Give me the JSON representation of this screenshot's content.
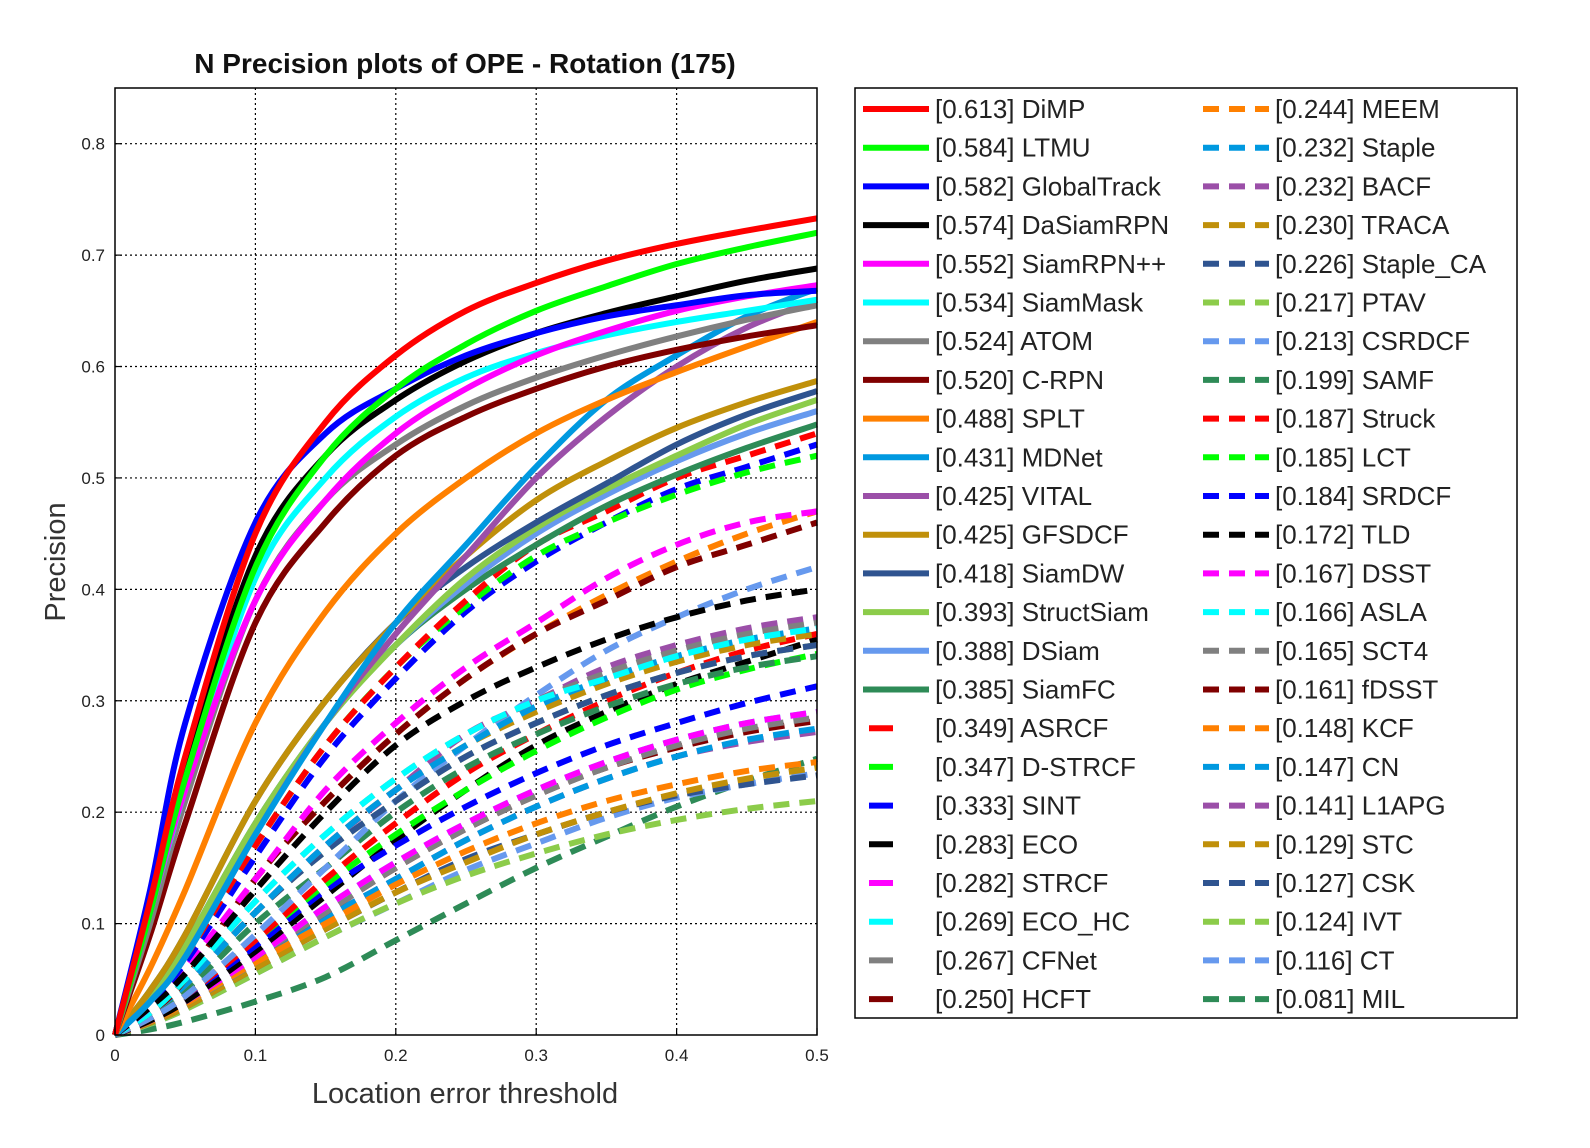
{
  "chart_data": {
    "type": "line",
    "title": "N Precision plots of OPE - Rotation (175)",
    "xlabel": "Location error threshold",
    "ylabel": "Precision",
    "xlim": [
      0,
      0.5
    ],
    "ylim": [
      0,
      0.85
    ],
    "xticks": [
      0,
      0.1,
      0.2,
      0.3,
      0.4,
      0.5
    ],
    "xtick_labels": [
      "0",
      "0.1",
      "0.2",
      "0.3",
      "0.4",
      "0.5"
    ],
    "yticks": [
      0,
      0.1,
      0.2,
      0.3,
      0.4,
      0.5,
      0.6,
      0.7,
      0.8
    ],
    "ytick_labels": [
      "0",
      "0.1",
      "0.2",
      "0.3",
      "0.4",
      "0.5",
      "0.6",
      "0.7",
      "0.8"
    ],
    "grid": true,
    "legend_position": "outside-right",
    "x": [
      0,
      0.025,
      0.05,
      0.1,
      0.15,
      0.2,
      0.25,
      0.3,
      0.35,
      0.4,
      0.45,
      0.5
    ],
    "series": [
      {
        "name": "[0.613] DiMP",
        "color": "#ff0000",
        "dash": "solid",
        "values": [
          0,
          0.12,
          0.25,
          0.45,
          0.55,
          0.61,
          0.65,
          0.675,
          0.695,
          0.71,
          0.722,
          0.733
        ]
      },
      {
        "name": "[0.584] LTMU",
        "color": "#00ff00",
        "dash": "solid",
        "values": [
          0,
          0.11,
          0.23,
          0.42,
          0.52,
          0.58,
          0.62,
          0.65,
          0.672,
          0.692,
          0.707,
          0.72
        ]
      },
      {
        "name": "[0.582] GlobalTrack",
        "color": "#0000ff",
        "dash": "solid",
        "values": [
          0,
          0.13,
          0.28,
          0.46,
          0.54,
          0.58,
          0.61,
          0.63,
          0.645,
          0.655,
          0.664,
          0.668
        ]
      },
      {
        "name": "[0.574] DaSiamRPN",
        "color": "#000000",
        "dash": "solid",
        "values": [
          0,
          0.12,
          0.24,
          0.43,
          0.52,
          0.57,
          0.605,
          0.63,
          0.648,
          0.663,
          0.677,
          0.688
        ]
      },
      {
        "name": "[0.552] SiamRPN++",
        "color": "#ff00ff",
        "dash": "solid",
        "values": [
          0,
          0.11,
          0.22,
          0.39,
          0.48,
          0.54,
          0.58,
          0.61,
          0.632,
          0.65,
          0.663,
          0.673
        ]
      },
      {
        "name": "[0.534] SiamMask",
        "color": "#00ffff",
        "dash": "solid",
        "values": [
          0,
          0.11,
          0.22,
          0.41,
          0.5,
          0.555,
          0.59,
          0.612,
          0.628,
          0.64,
          0.65,
          0.66
        ]
      },
      {
        "name": "[0.524] ATOM",
        "color": "#808080",
        "dash": "solid",
        "values": [
          0,
          0.1,
          0.21,
          0.39,
          0.48,
          0.53,
          0.565,
          0.59,
          0.61,
          0.627,
          0.642,
          0.655
        ]
      },
      {
        "name": "[0.520] C-RPN",
        "color": "#800000",
        "dash": "solid",
        "values": [
          0,
          0.09,
          0.19,
          0.37,
          0.46,
          0.52,
          0.555,
          0.58,
          0.6,
          0.615,
          0.627,
          0.637
        ]
      },
      {
        "name": "[0.488] SPLT",
        "color": "#ff8000",
        "dash": "solid",
        "values": [
          0,
          0.06,
          0.13,
          0.28,
          0.38,
          0.45,
          0.5,
          0.54,
          0.57,
          0.595,
          0.618,
          0.64
        ]
      },
      {
        "name": "[0.431] MDNet",
        "color": "#0099e0",
        "dash": "solid",
        "values": [
          0,
          0.03,
          0.07,
          0.18,
          0.28,
          0.37,
          0.44,
          0.51,
          0.57,
          0.61,
          0.645,
          0.67
        ]
      },
      {
        "name": "[0.425] VITAL",
        "color": "#9b4fa8",
        "dash": "solid",
        "values": [
          0,
          0.03,
          0.07,
          0.18,
          0.28,
          0.36,
          0.43,
          0.5,
          0.555,
          0.6,
          0.635,
          0.66
        ]
      },
      {
        "name": "[0.425] GFSDCF",
        "color": "#c0900a",
        "dash": "solid",
        "values": [
          0,
          0.04,
          0.09,
          0.21,
          0.3,
          0.37,
          0.43,
          0.48,
          0.515,
          0.545,
          0.568,
          0.587
        ]
      },
      {
        "name": "[0.418] SiamDW",
        "color": "#2f5490",
        "dash": "solid",
        "values": [
          0,
          0.04,
          0.09,
          0.21,
          0.3,
          0.37,
          0.42,
          0.46,
          0.495,
          0.53,
          0.557,
          0.578
        ]
      },
      {
        "name": "[0.393] StructSiam",
        "color": "#8ccc4a",
        "dash": "solid",
        "values": [
          0,
          0.035,
          0.08,
          0.19,
          0.28,
          0.35,
          0.41,
          0.455,
          0.49,
          0.52,
          0.548,
          0.57
        ]
      },
      {
        "name": "[0.388] DSiam",
        "color": "#6699ee",
        "dash": "solid",
        "values": [
          0,
          0.035,
          0.08,
          0.19,
          0.28,
          0.35,
          0.405,
          0.45,
          0.485,
          0.515,
          0.54,
          0.56
        ]
      },
      {
        "name": "[0.385] SiamFC",
        "color": "#2e8b57",
        "dash": "solid",
        "values": [
          0,
          0.035,
          0.08,
          0.19,
          0.28,
          0.35,
          0.4,
          0.44,
          0.475,
          0.503,
          0.527,
          0.548
        ]
      },
      {
        "name": "[0.349] ASRCF",
        "color": "#ff0000",
        "dash": "dash",
        "values": [
          0,
          0.03,
          0.07,
          0.17,
          0.26,
          0.33,
          0.39,
          0.44,
          0.47,
          0.5,
          0.52,
          0.54
        ]
      },
      {
        "name": "[0.347] D-STRCF",
        "color": "#00ff00",
        "dash": "dash",
        "values": [
          0,
          0.03,
          0.07,
          0.17,
          0.26,
          0.33,
          0.385,
          0.43,
          0.46,
          0.485,
          0.505,
          0.52
        ]
      },
      {
        "name": "[0.333] SINT",
        "color": "#0000ff",
        "dash": "dash",
        "values": [
          0,
          0.03,
          0.065,
          0.16,
          0.25,
          0.32,
          0.38,
          0.425,
          0.46,
          0.49,
          0.51,
          0.53
        ]
      },
      {
        "name": "[0.283] ECO",
        "color": "#000000",
        "dash": "dash",
        "values": [
          0,
          0.025,
          0.055,
          0.13,
          0.2,
          0.26,
          0.3,
          0.33,
          0.355,
          0.375,
          0.39,
          0.4
        ]
      },
      {
        "name": "[0.282] STRCF",
        "color": "#ff00ff",
        "dash": "dash",
        "values": [
          0,
          0.025,
          0.06,
          0.14,
          0.22,
          0.28,
          0.33,
          0.37,
          0.41,
          0.44,
          0.46,
          0.47
        ]
      },
      {
        "name": "[0.269] ECO_HC",
        "color": "#00ffff",
        "dash": "dash",
        "values": [
          0,
          0.02,
          0.05,
          0.12,
          0.18,
          0.23,
          0.27,
          0.3,
          0.32,
          0.34,
          0.355,
          0.365
        ]
      },
      {
        "name": "[0.267] CFNet",
        "color": "#808080",
        "dash": "dash",
        "values": [
          0,
          0.02,
          0.05,
          0.12,
          0.18,
          0.23,
          0.27,
          0.3,
          0.325,
          0.345,
          0.36,
          0.37
        ]
      },
      {
        "name": "[0.250] HCFT",
        "color": "#800000",
        "dash": "dash",
        "values": [
          0,
          0.02,
          0.05,
          0.14,
          0.21,
          0.27,
          0.32,
          0.36,
          0.39,
          0.42,
          0.44,
          0.46
        ]
      },
      {
        "name": "[0.244] MEEM",
        "color": "#ff8000",
        "dash": "dash",
        "values": [
          0,
          0.02,
          0.05,
          0.14,
          0.21,
          0.27,
          0.32,
          0.36,
          0.395,
          0.425,
          0.45,
          0.47
        ]
      },
      {
        "name": "[0.232] Staple",
        "color": "#0099e0",
        "dash": "dash",
        "values": [
          0,
          0.02,
          0.045,
          0.11,
          0.17,
          0.22,
          0.26,
          0.295,
          0.32,
          0.34,
          0.355,
          0.365
        ]
      },
      {
        "name": "[0.232] BACF",
        "color": "#9b4fa8",
        "dash": "dash",
        "values": [
          0,
          0.02,
          0.045,
          0.11,
          0.17,
          0.22,
          0.27,
          0.3,
          0.33,
          0.35,
          0.365,
          0.375
        ]
      },
      {
        "name": "[0.230] TRACA",
        "color": "#c0900a",
        "dash": "dash",
        "values": [
          0,
          0.02,
          0.045,
          0.11,
          0.17,
          0.22,
          0.26,
          0.29,
          0.315,
          0.335,
          0.35,
          0.36
        ]
      },
      {
        "name": "[0.226] Staple_CA",
        "color": "#2f5490",
        "dash": "dash",
        "values": [
          0,
          0.02,
          0.045,
          0.11,
          0.165,
          0.21,
          0.25,
          0.28,
          0.305,
          0.325,
          0.34,
          0.35
        ]
      },
      {
        "name": "[0.217] PTAV",
        "color": "#8ccc4a",
        "dash": "dash",
        "values": [
          0,
          0.02,
          0.045,
          0.11,
          0.165,
          0.21,
          0.25,
          0.28,
          0.305,
          0.325,
          0.34,
          0.35
        ]
      },
      {
        "name": "[0.213] CSRDCF",
        "color": "#6699ee",
        "dash": "dash",
        "values": [
          0,
          0.015,
          0.035,
          0.09,
          0.15,
          0.21,
          0.26,
          0.305,
          0.345,
          0.375,
          0.4,
          0.42
        ]
      },
      {
        "name": "[0.199] SAMF",
        "color": "#2e8b57",
        "dash": "dash",
        "values": [
          0,
          0.02,
          0.04,
          0.1,
          0.15,
          0.2,
          0.24,
          0.27,
          0.295,
          0.315,
          0.33,
          0.34
        ]
      },
      {
        "name": "[0.187] Struck",
        "color": "#ff0000",
        "dash": "dash",
        "values": [
          0,
          0.015,
          0.035,
          0.085,
          0.14,
          0.19,
          0.235,
          0.27,
          0.3,
          0.325,
          0.345,
          0.36
        ]
      },
      {
        "name": "[0.185] LCT",
        "color": "#00ff00",
        "dash": "dash",
        "values": [
          0,
          0.015,
          0.035,
          0.085,
          0.135,
          0.18,
          0.22,
          0.255,
          0.285,
          0.31,
          0.328,
          0.342
        ]
      },
      {
        "name": "[0.184] SRDCF",
        "color": "#0000ff",
        "dash": "dash",
        "values": [
          0,
          0.015,
          0.035,
          0.08,
          0.13,
          0.17,
          0.205,
          0.235,
          0.26,
          0.28,
          0.298,
          0.313
        ]
      },
      {
        "name": "[0.172] TLD",
        "color": "#000000",
        "dash": "dash",
        "values": [
          0,
          0.013,
          0.03,
          0.075,
          0.125,
          0.175,
          0.22,
          0.26,
          0.29,
          0.315,
          0.335,
          0.355
        ]
      },
      {
        "name": "[0.167] DSST",
        "color": "#ff00ff",
        "dash": "dash",
        "values": [
          0,
          0.013,
          0.03,
          0.07,
          0.115,
          0.155,
          0.19,
          0.22,
          0.245,
          0.265,
          0.28,
          0.29
        ]
      },
      {
        "name": "[0.166] ASLA",
        "color": "#00ffff",
        "dash": "dash",
        "values": [
          0,
          0.013,
          0.03,
          0.07,
          0.115,
          0.155,
          0.19,
          0.22,
          0.245,
          0.265,
          0.28,
          0.29
        ]
      },
      {
        "name": "[0.165] SCT4",
        "color": "#808080",
        "dash": "dash",
        "values": [
          0,
          0.013,
          0.03,
          0.07,
          0.11,
          0.15,
          0.185,
          0.215,
          0.24,
          0.26,
          0.275,
          0.285
        ]
      },
      {
        "name": "[0.161] fDSST",
        "color": "#800000",
        "dash": "dash",
        "values": [
          0,
          0.013,
          0.03,
          0.07,
          0.11,
          0.15,
          0.185,
          0.215,
          0.24,
          0.258,
          0.272,
          0.282
        ]
      },
      {
        "name": "[0.148] KCF",
        "color": "#ff8000",
        "dash": "dash",
        "values": [
          0,
          0.012,
          0.028,
          0.065,
          0.1,
          0.135,
          0.165,
          0.19,
          0.21,
          0.225,
          0.237,
          0.245
        ]
      },
      {
        "name": "[0.147] CN",
        "color": "#0099e0",
        "dash": "dash",
        "values": [
          0,
          0.012,
          0.028,
          0.065,
          0.105,
          0.14,
          0.175,
          0.205,
          0.23,
          0.25,
          0.265,
          0.275
        ]
      },
      {
        "name": "[0.141] L1APG",
        "color": "#9b4fa8",
        "dash": "dash",
        "values": [
          0,
          0.012,
          0.028,
          0.065,
          0.105,
          0.14,
          0.175,
          0.205,
          0.23,
          0.25,
          0.263,
          0.272
        ]
      },
      {
        "name": "[0.129] STC",
        "color": "#c0900a",
        "dash": "dash",
        "values": [
          0,
          0.011,
          0.025,
          0.06,
          0.095,
          0.128,
          0.155,
          0.18,
          0.2,
          0.217,
          0.23,
          0.24
        ]
      },
      {
        "name": "[0.127] CSK",
        "color": "#2f5490",
        "dash": "dash",
        "values": [
          0,
          0.011,
          0.025,
          0.06,
          0.095,
          0.128,
          0.158,
          0.18,
          0.2,
          0.215,
          0.225,
          0.233
        ]
      },
      {
        "name": "[0.124] IVT",
        "color": "#8ccc4a",
        "dash": "dash",
        "values": [
          0,
          0.01,
          0.023,
          0.055,
          0.088,
          0.118,
          0.143,
          0.163,
          0.18,
          0.193,
          0.203,
          0.21
        ]
      },
      {
        "name": "[0.116] CT",
        "color": "#6699ee",
        "dash": "dash",
        "values": [
          0,
          0.01,
          0.023,
          0.055,
          0.088,
          0.118,
          0.148,
          0.172,
          0.195,
          0.213,
          0.225,
          0.235
        ]
      },
      {
        "name": "[0.081] MIL",
        "color": "#2e8b57",
        "dash": "dash",
        "values": [
          0,
          0.005,
          0.012,
          0.03,
          0.052,
          0.085,
          0.118,
          0.15,
          0.178,
          0.205,
          0.228,
          0.248
        ]
      }
    ]
  }
}
